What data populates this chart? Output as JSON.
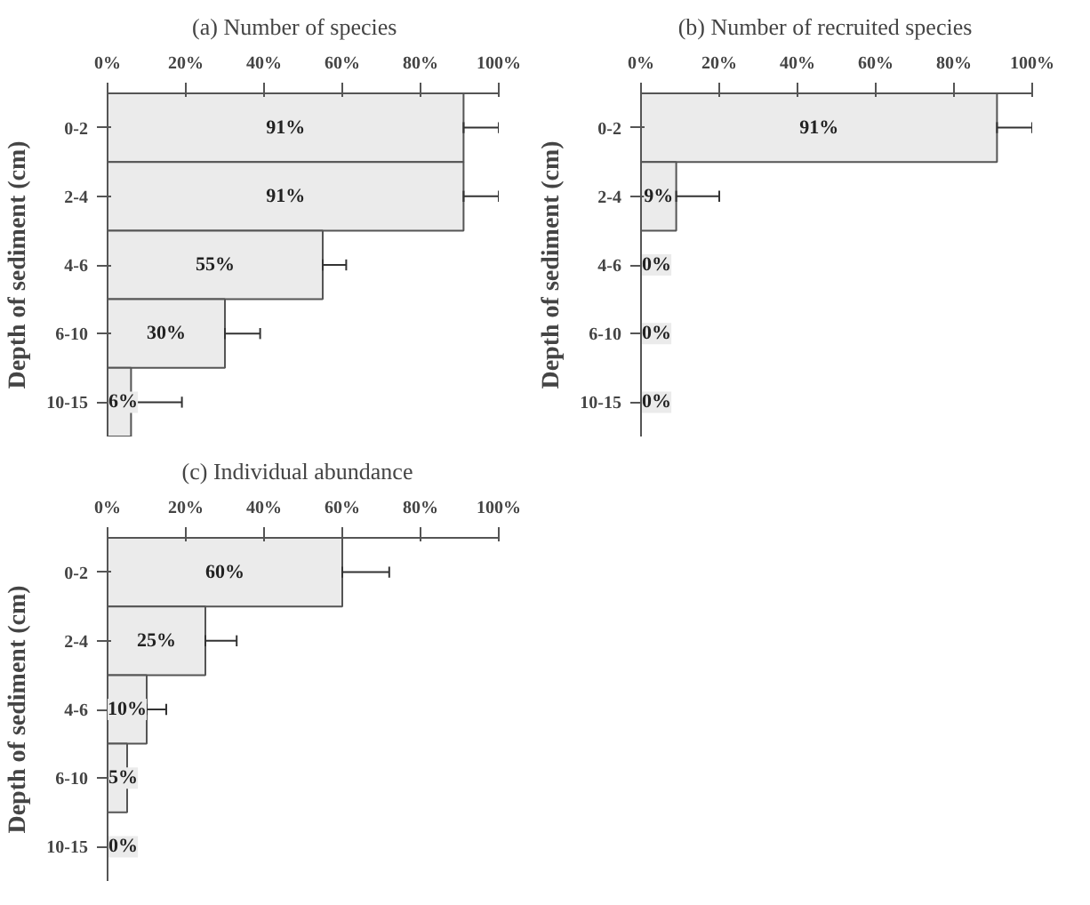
{
  "chart_data": [
    {
      "type": "bar",
      "orientation": "horizontal",
      "title": "(a)  Number  of  species",
      "ylabel": "Depth of sediment (cm)",
      "categories": [
        "0-2",
        "2-4",
        "4-6",
        "6-10",
        "10-15"
      ],
      "values": [
        91,
        91,
        55,
        30,
        6
      ],
      "value_labels": [
        "91%",
        "91%",
        "55%",
        "30%",
        "6%"
      ],
      "errors": [
        [
          91,
          100
        ],
        [
          91,
          100
        ],
        [
          55,
          61
        ],
        [
          30,
          39
        ],
        [
          6,
          19
        ]
      ],
      "color": "#ebebeb",
      "xlim": [
        0,
        100
      ],
      "xticks": [
        {
          "value": 0,
          "label": "0%"
        },
        {
          "value": 20,
          "label": "20%"
        },
        {
          "value": 40,
          "label": "40%"
        },
        {
          "value": 60,
          "label": "60%"
        },
        {
          "value": 80,
          "label": "80%"
        },
        {
          "value": 100,
          "label": "100%"
        }
      ],
      "grid": false
    },
    {
      "type": "bar",
      "orientation": "horizontal",
      "title": "(b)  Number  of  recruited  species",
      "ylabel": "Depth of sediment (cm)",
      "categories": [
        "0-2",
        "2-4",
        "4-6",
        "6-10",
        "10-15"
      ],
      "values": [
        91,
        9,
        0,
        0,
        0
      ],
      "value_labels": [
        "91%",
        "9%",
        "0%",
        "0%",
        "0%"
      ],
      "errors": [
        [
          91,
          100
        ],
        [
          9,
          20
        ],
        null,
        null,
        null
      ],
      "color": "#ebebeb",
      "xlim": [
        0,
        100
      ],
      "xticks": [
        {
          "value": 0,
          "label": "0%"
        },
        {
          "value": 20,
          "label": "20%"
        },
        {
          "value": 40,
          "label": "40%"
        },
        {
          "value": 60,
          "label": "60%"
        },
        {
          "value": 80,
          "label": "80%"
        },
        {
          "value": 100,
          "label": "100%"
        }
      ],
      "grid": false
    },
    {
      "type": "bar",
      "orientation": "horizontal",
      "title": "(c)  Individual  abundance",
      "ylabel": "Depth of sediment (cm)",
      "categories": [
        "0-2",
        "2-4",
        "4-6",
        "6-10",
        "10-15"
      ],
      "values": [
        60,
        25,
        10,
        5,
        0
      ],
      "value_labels": [
        "60%",
        "25%",
        "10%",
        "5%",
        "0%"
      ],
      "errors": [
        [
          60,
          72
        ],
        [
          25,
          33
        ],
        [
          10,
          15
        ],
        null,
        null
      ],
      "color": "#ebebeb",
      "xlim": [
        0,
        100
      ],
      "xticks": [
        {
          "value": 0,
          "label": "0%"
        },
        {
          "value": 20,
          "label": "20%"
        },
        {
          "value": 40,
          "label": "40%"
        },
        {
          "value": 60,
          "label": "60%"
        },
        {
          "value": 80,
          "label": "80%"
        },
        {
          "value": 100,
          "label": "100%"
        }
      ],
      "grid": false
    }
  ]
}
